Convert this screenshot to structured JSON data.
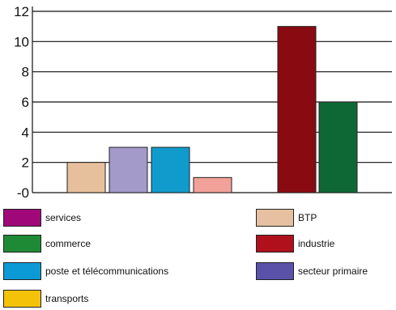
{
  "chart_data": {
    "type": "bar",
    "title": "",
    "xlabel": "",
    "ylabel": "",
    "ylim": [
      0,
      12
    ],
    "yticks": [
      "-0",
      "2",
      "4",
      "6",
      "8",
      "10",
      "12"
    ],
    "grid": true,
    "legend_placement": "bottom",
    "bars": [
      {
        "series": "BTP",
        "value": 2,
        "color": "#e6bf9c"
      },
      {
        "series": "secteur primaire",
        "value": 3,
        "color": "#a39ac9"
      },
      {
        "series": "poste et télécommunications",
        "value": 3,
        "color": "#119bcc"
      },
      {
        "series": "",
        "value": 1,
        "color": "#f2a199"
      },
      {
        "series": "industrie",
        "value": 11,
        "color": "#8a0a12"
      },
      {
        "series": "commerce",
        "value": 6,
        "color": "#0e6836"
      }
    ],
    "legend": [
      {
        "name": "services",
        "color": "#a0087a"
      },
      {
        "name": "BTP",
        "color": "#e6c0a0"
      },
      {
        "name": "commerce",
        "color": "#1e8a36"
      },
      {
        "name": "industrie",
        "color": "#b0101c"
      },
      {
        "name": "poste et télécommunications",
        "color": "#0c9ad6"
      },
      {
        "name": "secteur primaire",
        "color": "#5a52a8"
      },
      {
        "name": "transports",
        "color": "#f5c20a"
      }
    ]
  }
}
